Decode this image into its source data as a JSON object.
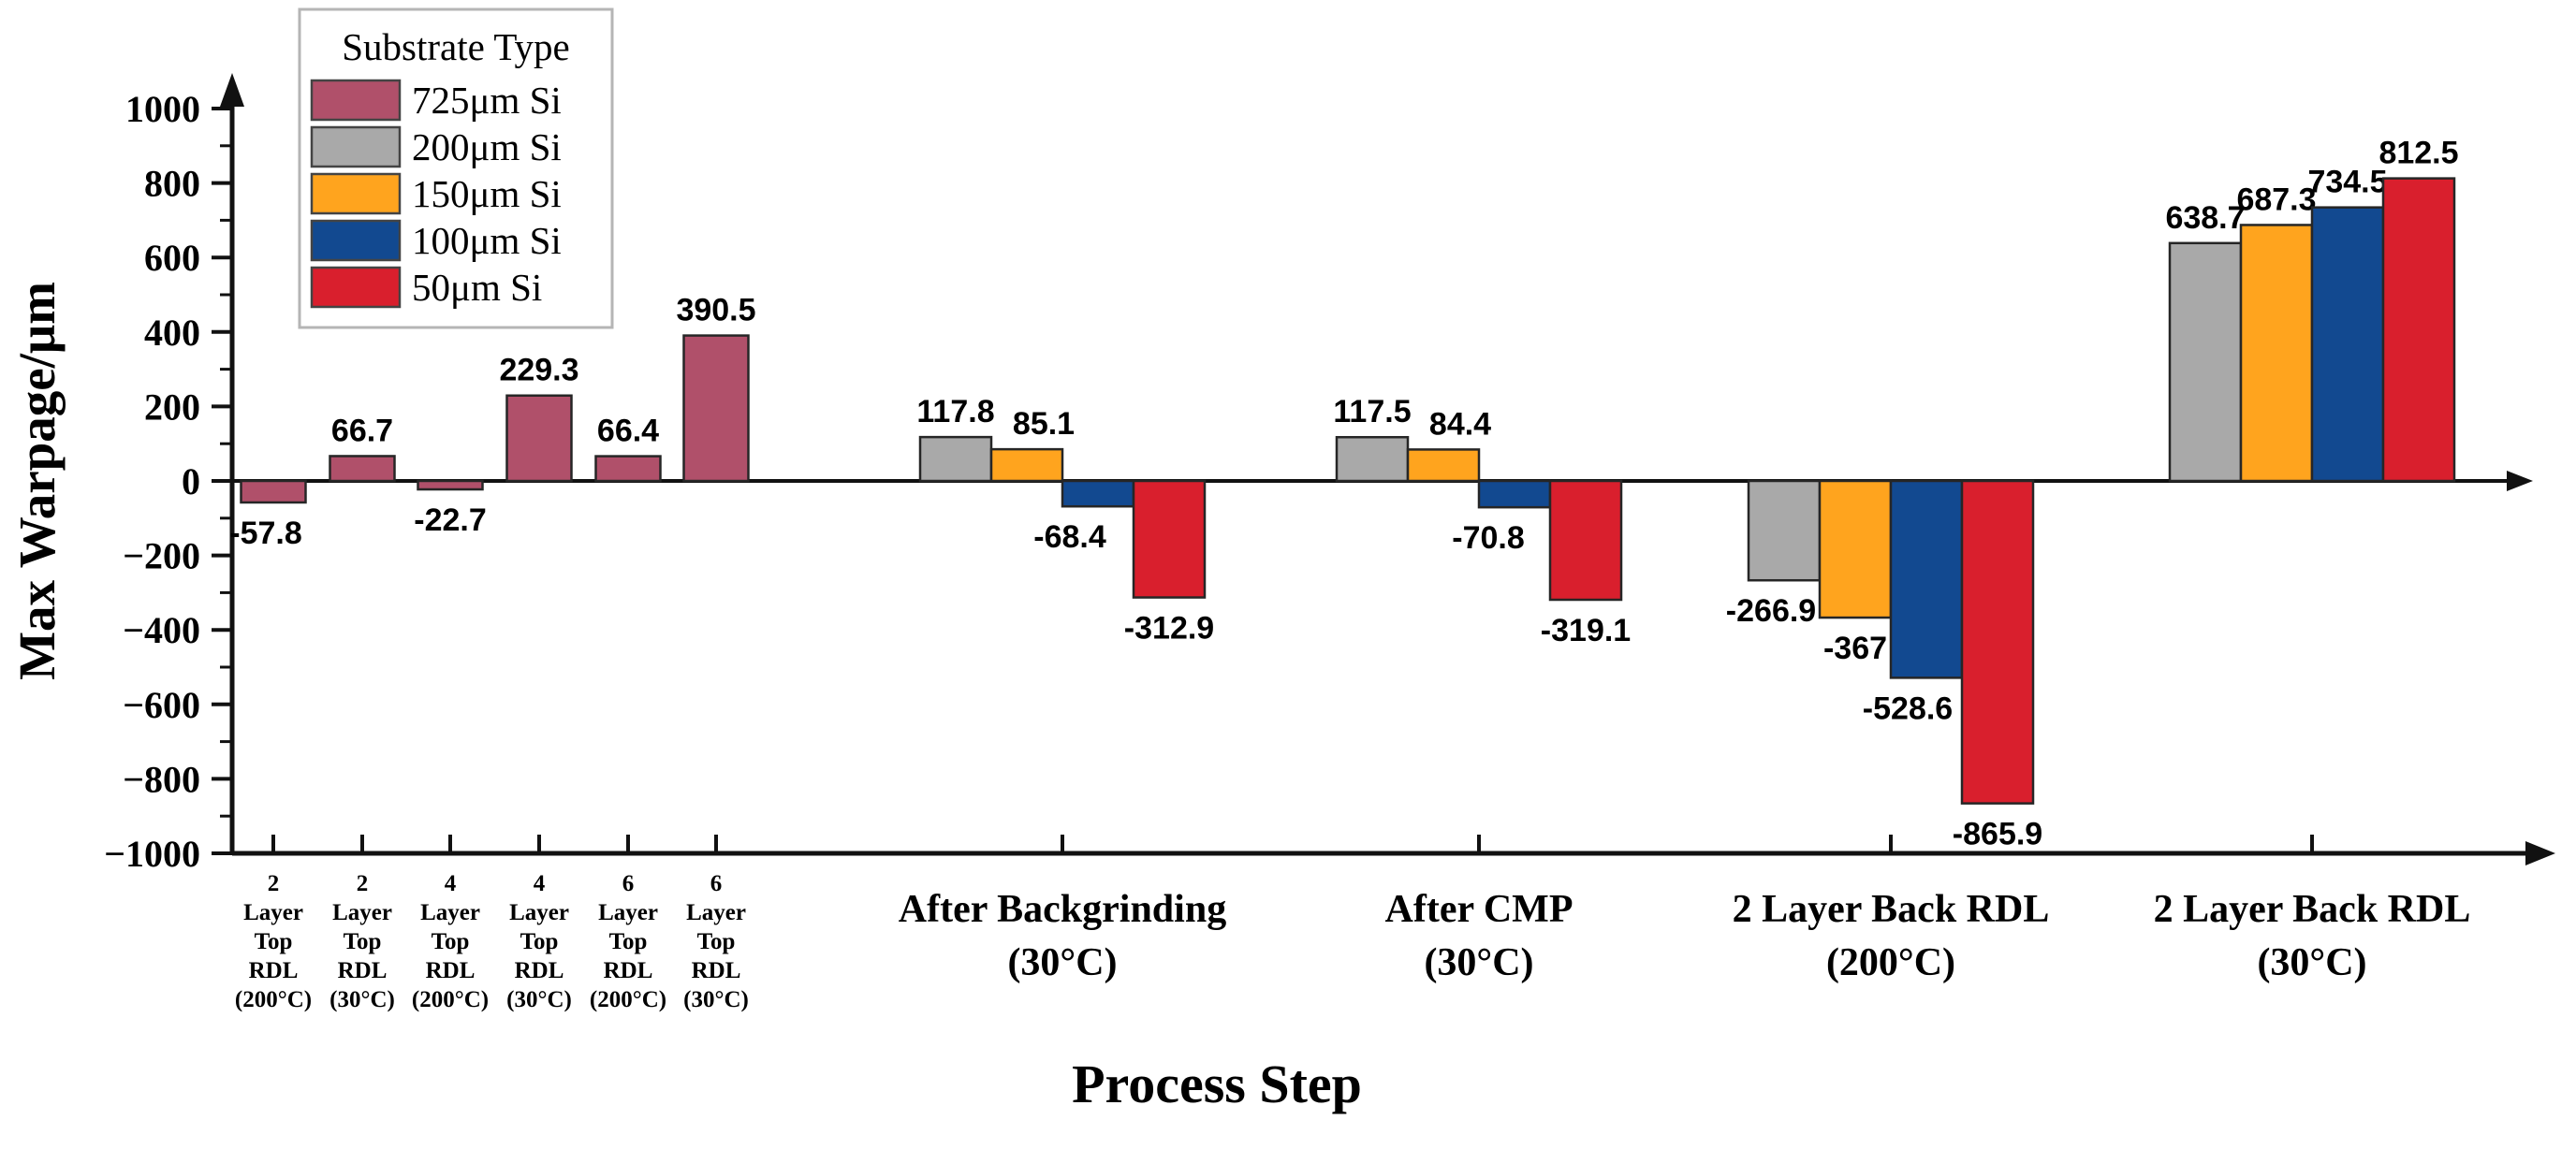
{
  "chart_data": {
    "type": "bar",
    "title": "",
    "xlabel": "Process Step",
    "ylabel": "Max Warpage/μm",
    "ylim": [
      -1000,
      1000
    ],
    "y_major_ticks": [
      1000,
      800,
      600,
      400,
      200,
      0,
      -200,
      -400,
      -600,
      -800,
      -1000
    ],
    "y_minor_step": 100,
    "grid": false,
    "legend": {
      "title": "Substrate Type",
      "position": "top-left",
      "entries": [
        {
          "label": "725μm Si",
          "color": "#b0506a"
        },
        {
          "label": "200μm Si",
          "color": "#a9a9a9"
        },
        {
          "label": "150μm Si",
          "color": "#ffa41e"
        },
        {
          "label": "100μm Si",
          "color": "#124990"
        },
        {
          "label": "50μm Si",
          "color": "#d91f2d"
        }
      ]
    },
    "series": [
      {
        "name": "725μm Si",
        "color": "#b0506a"
      },
      {
        "name": "200μm Si",
        "color": "#a9a9a9"
      },
      {
        "name": "150μm Si",
        "color": "#ffa41e"
      },
      {
        "name": "100μm Si",
        "color": "#124990"
      },
      {
        "name": "50μm Si",
        "color": "#d91f2d"
      }
    ],
    "groups": [
      {
        "label_lines": [
          "2",
          "Layer",
          "Top",
          "RDL",
          "(200°C)"
        ],
        "size": "small",
        "bars": [
          {
            "series": "725μm Si",
            "value": -57.8,
            "label": "-57.8"
          }
        ]
      },
      {
        "label_lines": [
          "2",
          "Layer",
          "Top",
          "RDL",
          "(30°C)"
        ],
        "size": "small",
        "bars": [
          {
            "series": "725μm Si",
            "value": 66.7,
            "label": "66.7"
          }
        ]
      },
      {
        "label_lines": [
          "4",
          "Layer",
          "Top",
          "RDL",
          "(200°C)"
        ],
        "size": "small",
        "bars": [
          {
            "series": "725μm Si",
            "value": -22.7,
            "label": "-22.7"
          }
        ]
      },
      {
        "label_lines": [
          "4",
          "Layer",
          "Top",
          "RDL",
          "(30°C)"
        ],
        "size": "small",
        "bars": [
          {
            "series": "725μm Si",
            "value": 229.3,
            "label": "229.3"
          }
        ]
      },
      {
        "label_lines": [
          "6",
          "Layer",
          "Top",
          "RDL",
          "(200°C)"
        ],
        "size": "small",
        "bars": [
          {
            "series": "725μm Si",
            "value": 66.4,
            "label": "66.4"
          }
        ]
      },
      {
        "label_lines": [
          "6",
          "Layer",
          "Top",
          "RDL",
          "(30°C)"
        ],
        "size": "small",
        "bars": [
          {
            "series": "725μm Si",
            "value": 390.5,
            "label": "390.5"
          }
        ]
      },
      {
        "label_lines": [
          "After Backgrinding",
          "(30°C)"
        ],
        "size": "large",
        "bars": [
          {
            "series": "200μm Si",
            "value": 117.8,
            "label": "117.8"
          },
          {
            "series": "150μm Si",
            "value": 85.1,
            "label": "85.1"
          },
          {
            "series": "100μm Si",
            "value": -68.4,
            "label": "-68.4"
          },
          {
            "series": "50μm Si",
            "value": -312.9,
            "label": "-312.9"
          }
        ]
      },
      {
        "label_lines": [
          "After CMP",
          "(30°C)"
        ],
        "size": "large",
        "bars": [
          {
            "series": "200μm Si",
            "value": 117.5,
            "label": "117.5"
          },
          {
            "series": "150μm Si",
            "value": 84.4,
            "label": "84.4"
          },
          {
            "series": "100μm Si",
            "value": -70.8,
            "label": "-70.8"
          },
          {
            "series": "50μm Si",
            "value": -319.1,
            "label": "-319.1"
          }
        ]
      },
      {
        "label_lines": [
          "2 Layer Back RDL",
          "(200°C)"
        ],
        "size": "large",
        "bars": [
          {
            "series": "200μm Si",
            "value": -266.9,
            "label": "-266.9"
          },
          {
            "series": "150μm Si",
            "value": -367,
            "label": "-367"
          },
          {
            "series": "100μm Si",
            "value": -528.6,
            "label": "-528.6"
          },
          {
            "series": "50μm Si",
            "value": -865.9,
            "label": "-865.9"
          }
        ]
      },
      {
        "label_lines": [
          "2 Layer Back RDL",
          "(30°C)"
        ],
        "size": "large",
        "bars": [
          {
            "series": "200μm Si",
            "value": 638.7,
            "label": "638.7"
          },
          {
            "series": "150μm Si",
            "value": 687.3,
            "label": "687.3"
          },
          {
            "series": "100μm Si",
            "value": 734.5,
            "label": "734.5"
          },
          {
            "series": "50μm Si",
            "value": 812.5,
            "label": "812.5"
          }
        ]
      }
    ],
    "colors": {
      "background": "#ffffff",
      "axis": "#111111",
      "text": "#000000"
    }
  }
}
